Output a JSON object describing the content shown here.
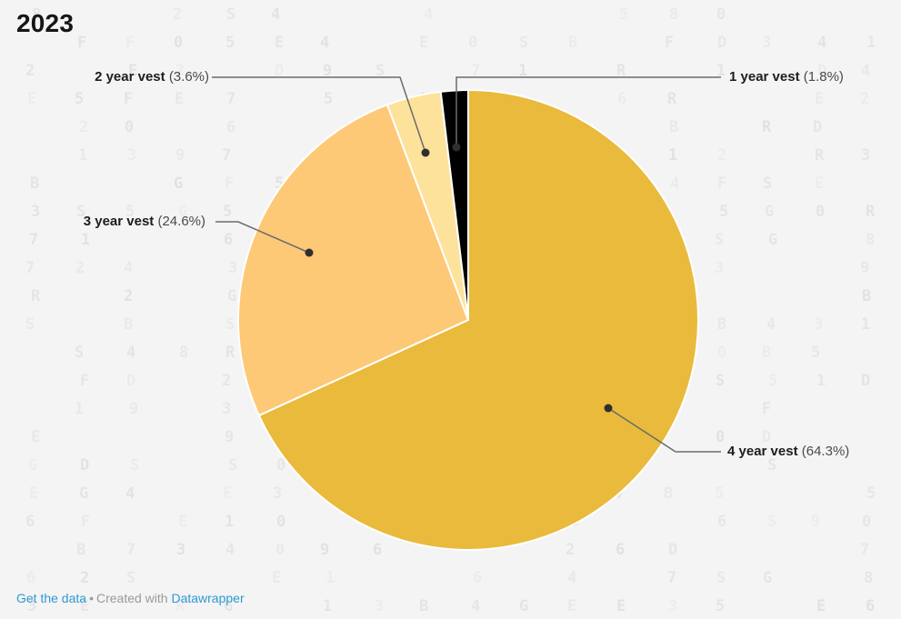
{
  "header": {
    "title": "2023"
  },
  "chart_data": {
    "type": "pie",
    "title": "2023",
    "unit": "%",
    "start_angle_deg": 0,
    "direction": "clockwise",
    "legend_position": "callout-labels",
    "slices": [
      {
        "label": "4 year vest",
        "value": 64.3,
        "pct_text": "(64.3%)",
        "color": "#E9BA3B"
      },
      {
        "label": "3 year vest",
        "value": 24.6,
        "pct_text": "(24.6%)",
        "color": "#FDC977"
      },
      {
        "label": "2 year vest",
        "value": 3.6,
        "pct_text": "(3.6%)",
        "color": "#FDE29C"
      },
      {
        "label": "1 year vest",
        "value": 1.8,
        "pct_text": "(1.8%)",
        "color": "#000000"
      }
    ],
    "colors": {
      "leader_line": "#6b6b6b",
      "leader_dot": "#2f2f2f",
      "slice_gap_stroke": "#ffffff"
    }
  },
  "footer": {
    "get_data_label": "Get the data",
    "separator": "•",
    "created_with": "Created with",
    "datawrapper_label": "Datawrapper",
    "link_color": "#2d9ad3"
  },
  "background": {
    "color": "#f4f4f4",
    "watermark_chars": "0123456789BRDEFGS"
  }
}
